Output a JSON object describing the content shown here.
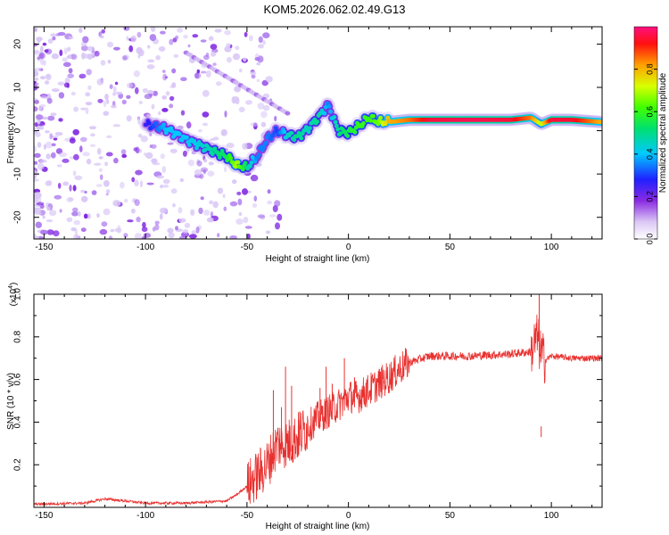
{
  "title": "KOM5.2026.062.02.49.G13",
  "chart_data": [
    {
      "type": "heatmap",
      "name": "spectrogram",
      "xlabel": "Height of straight line (km)",
      "ylabel": "Frequency (Hz)",
      "xlim": [
        -155,
        125
      ],
      "ylim": [
        -25,
        24
      ],
      "xticks": [
        -150,
        -100,
        -50,
        0,
        50,
        100
      ],
      "xtick_labels": [
        "-150",
        "-100",
        "-50",
        "0",
        "50",
        "100"
      ],
      "yticks": [
        -20,
        -10,
        0,
        10,
        20
      ],
      "ytick_labels": [
        "-20",
        "-10",
        "0",
        "10",
        "20"
      ],
      "ridge": {
        "description": "dominant spectral ridge (frequency vs height)",
        "x": [
          -100,
          -90,
          -80,
          -70,
          -60,
          -55,
          -50,
          -45,
          -40,
          -35,
          -30,
          -25,
          -20,
          -15,
          -10,
          -5,
          0,
          5,
          10,
          15,
          20,
          30,
          40,
          60,
          80,
          90,
          95,
          100,
          110,
          125
        ],
        "y": [
          1.5,
          0.5,
          -2,
          -4,
          -6,
          -8,
          -8.5,
          -6,
          -2,
          0,
          -1,
          -1.5,
          0.5,
          3,
          6,
          0,
          -0.5,
          1,
          3,
          2,
          2,
          2.5,
          2.5,
          2.5,
          2.5,
          3,
          1.5,
          2.5,
          2.5,
          2
        ],
        "amplitude": [
          0.25,
          0.4,
          0.4,
          0.45,
          0.55,
          0.7,
          0.5,
          0.35,
          0.35,
          0.3,
          0.45,
          0.5,
          0.45,
          0.5,
          0.35,
          0.5,
          0.55,
          0.6,
          0.6,
          0.65,
          0.8,
          0.85,
          0.95,
          0.97,
          0.95,
          0.85,
          0.7,
          0.95,
          0.95,
          0.8
        ]
      },
      "colorbar": {
        "label": "Normalized spectral amplitude",
        "range": [
          0,
          1
        ],
        "ticks": [
          0,
          0.2,
          0.4,
          0.6,
          0.8
        ],
        "tick_labels": [
          "0.0",
          "0.2",
          "0.4",
          "0.6",
          "0.8"
        ]
      }
    },
    {
      "type": "line",
      "name": "snr",
      "xlabel": "Height of straight line (km)",
      "ylabel": "SNR (10 * v/v)",
      "multiplier_label": "(x10",
      "multiplier_exp": "4",
      "multiplier_close": ")",
      "xlim": [
        -155,
        125
      ],
      "ylim": [
        0,
        1.0
      ],
      "xticks": [
        -150,
        -100,
        -50,
        0,
        50,
        100
      ],
      "xtick_labels": [
        "-150",
        "-100",
        "-50",
        "0",
        "50",
        "100"
      ],
      "yticks": [
        0.2,
        0.4,
        0.6,
        0.8,
        1.0
      ],
      "ytick_labels": [
        "0.2",
        "0.4",
        "0.6",
        "0.8",
        "1.0"
      ],
      "color": "#e8312f",
      "series": [
        {
          "name": "SNR envelope",
          "x": [
            -155,
            -130,
            -120,
            -110,
            -100,
            -80,
            -60,
            -55,
            -50,
            -45,
            -40,
            -35,
            -30,
            -25,
            -20,
            -15,
            -10,
            -5,
            0,
            5,
            10,
            15,
            20,
            25,
            30,
            40,
            60,
            80,
            90,
            93,
            95,
            97,
            100,
            110,
            125
          ],
          "y": [
            0.015,
            0.02,
            0.04,
            0.03,
            0.02,
            0.02,
            0.03,
            0.06,
            0.1,
            0.15,
            0.2,
            0.3,
            0.3,
            0.33,
            0.38,
            0.42,
            0.45,
            0.48,
            0.52,
            0.52,
            0.55,
            0.58,
            0.61,
            0.65,
            0.68,
            0.71,
            0.71,
            0.72,
            0.73,
            0.8,
            0.72,
            0.69,
            0.71,
            0.7,
            0.7
          ]
        }
      ],
      "spikes": [
        {
          "x": -37,
          "y": 0.55
        },
        {
          "x": -33,
          "y": 0.47
        },
        {
          "x": -31,
          "y": 0.66
        },
        {
          "x": -28,
          "y": 0.57
        },
        {
          "x": -24,
          "y": 0.45
        },
        {
          "x": -14,
          "y": 0.56
        },
        {
          "x": -11,
          "y": 0.66
        },
        {
          "x": -8,
          "y": 0.58
        },
        {
          "x": -2,
          "y": 0.7
        },
        {
          "x": 3,
          "y": 0.61
        },
        {
          "x": 9,
          "y": 0.6
        },
        {
          "x": 94,
          "y": 1.0
        },
        {
          "x": 95,
          "y": 0.38
        }
      ]
    }
  ]
}
